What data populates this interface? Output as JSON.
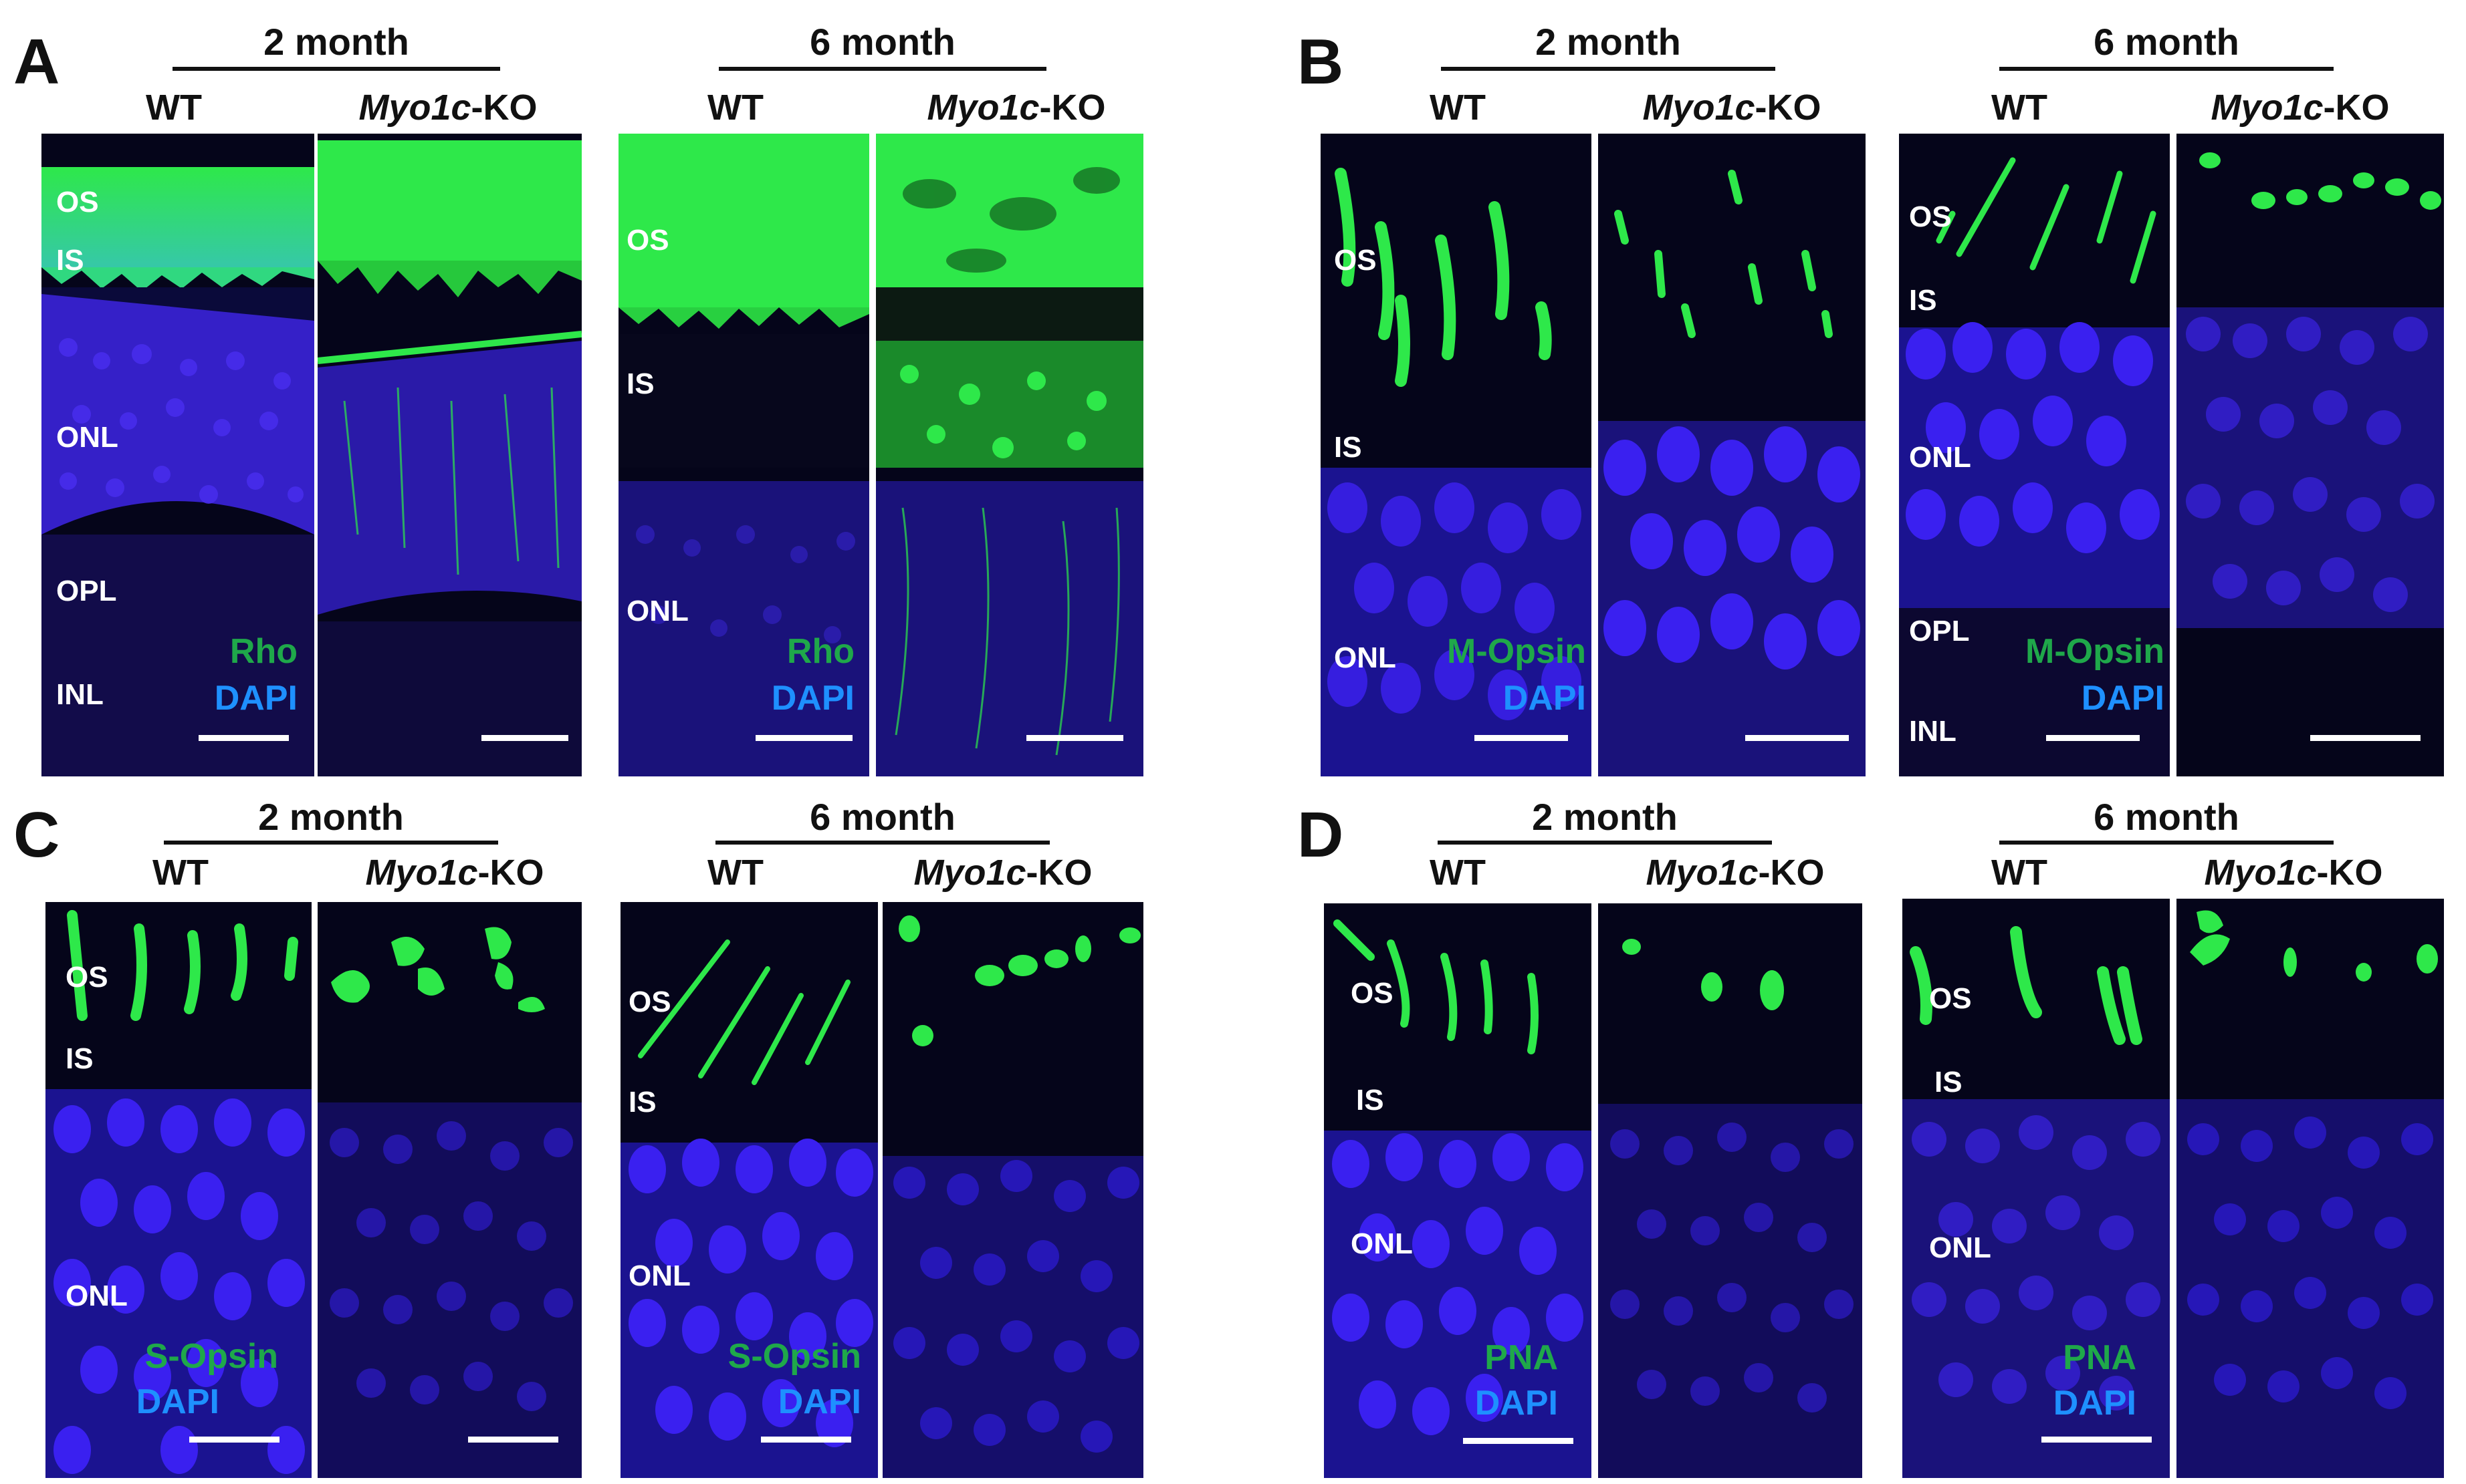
{
  "figure": {
    "panels": {
      "A": {
        "letter": "A",
        "group1": {
          "time": "2 month",
          "wt": "WT",
          "ko_gene": "Myo1c",
          "ko_suffix": "-KO"
        },
        "group2": {
          "time": "6 month",
          "wt": "WT",
          "ko_gene": "Myo1c",
          "ko_suffix": "-KO"
        },
        "img1_layers": [
          "OS",
          "IS",
          "ONL",
          "OPL",
          "INL"
        ],
        "img3_layers": [
          "OS",
          "IS",
          "ONL"
        ],
        "stain_green": "Rho",
        "stain_blue": "DAPI"
      },
      "B": {
        "letter": "B",
        "group1": {
          "time": "2 month",
          "wt": "WT",
          "ko_gene": "Myo1c",
          "ko_suffix": "-KO"
        },
        "group2": {
          "time": "6 month",
          "wt": "WT",
          "ko_gene": "Myo1c",
          "ko_suffix": "-KO"
        },
        "img1_layers": [
          "OS",
          "IS",
          "ONL"
        ],
        "img3_layers": [
          "OS",
          "IS",
          "ONL",
          "OPL",
          "INL"
        ],
        "stain_green": "M-Opsin",
        "stain_blue": "DAPI"
      },
      "C": {
        "letter": "C",
        "group1": {
          "time": "2 month",
          "wt": "WT",
          "ko_gene": "Myo1c",
          "ko_suffix": "-KO"
        },
        "group2": {
          "time": "6 month",
          "wt": "WT",
          "ko_gene": "Myo1c",
          "ko_suffix": "-KO"
        },
        "img1_layers": [
          "OS",
          "IS",
          "ONL"
        ],
        "img3_layers": [
          "OS",
          "IS",
          "ONL"
        ],
        "stain_green": "S-Opsin",
        "stain_blue": "DAPI"
      },
      "D": {
        "letter": "D",
        "group1": {
          "time": "2 month",
          "wt": "WT",
          "ko_gene": "Myo1c",
          "ko_suffix": "-KO"
        },
        "group2": {
          "time": "6 month",
          "wt": "WT",
          "ko_gene": "Myo1c",
          "ko_suffix": "-KO"
        },
        "img1_layers": [
          "OS",
          "IS",
          "ONL"
        ],
        "img3_layers": [
          "OS",
          "IS",
          "ONL"
        ],
        "stain_green": "PNA",
        "stain_blue": "DAPI"
      }
    },
    "colors": {
      "green_signal": "#2ee84a",
      "blue_nuclei": "#3a1fe0",
      "background": "#05051a",
      "stain_green_text": "#1fa84a",
      "stain_blue_text": "#1e90ff"
    }
  }
}
